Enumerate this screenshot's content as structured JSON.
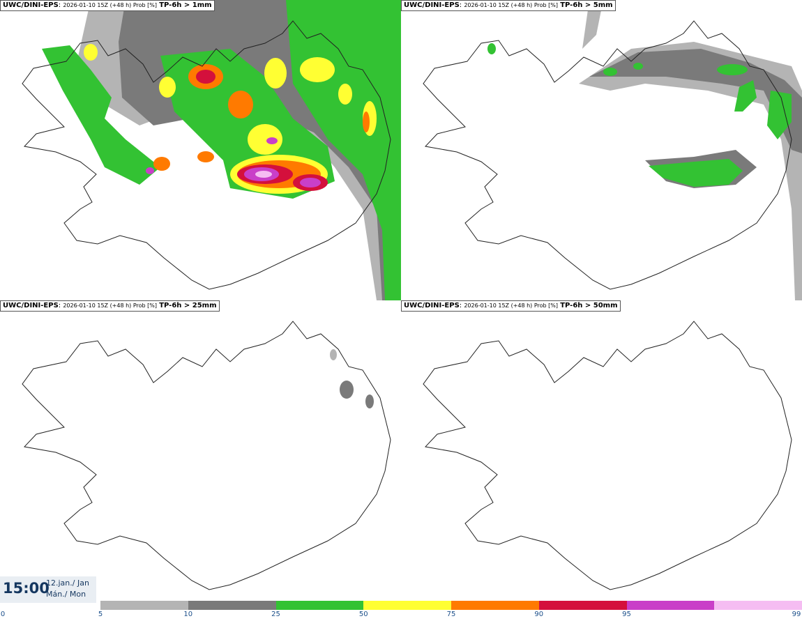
{
  "panels": [
    {
      "model": "UWC/DINI-EPS",
      "meta": "2026-01-10 15Z (+48 h) Prob [%]",
      "param": "TP-6h > 1mm"
    },
    {
      "model": "UWC/DINI-EPS",
      "meta": "2026-01-10 15Z (+48 h) Prob [%]",
      "param": "TP-6h > 5mm"
    },
    {
      "model": "UWC/DINI-EPS",
      "meta": "2026-01-10 15Z (+48 h) Prob [%]",
      "param": "TP-6h > 25mm"
    },
    {
      "model": "UWC/DINI-EPS",
      "meta": "2026-01-10 15Z (+48 h) Prob [%]",
      "param": "TP-6h > 50mm"
    }
  ],
  "valid": {
    "time": "15:00",
    "date_line1": "12.jan./ Jan",
    "date_line2": "Mán./ Mon"
  },
  "colorbar": {
    "ticks": [
      "0",
      "5",
      "10",
      "25",
      "50",
      "75",
      "90",
      "95",
      "99"
    ],
    "colors": [
      "#b4b4b4",
      "#7a7a7a",
      "#33c233",
      "#ffff33",
      "#ff7a00",
      "#d4103c",
      "#c93fc8",
      "#f5bdf2"
    ]
  }
}
